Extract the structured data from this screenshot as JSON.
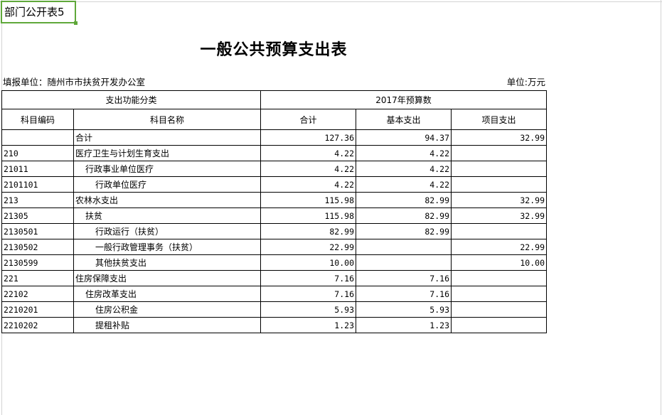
{
  "sheet": {
    "cell_a1": "部门公开表5",
    "selection_color": "#5fa83a"
  },
  "document": {
    "title": "一般公共预算支出表",
    "unit_org": "填报单位：随州市市扶贫开发办公室",
    "unit": "单位:万元"
  },
  "table": {
    "header_group_left": "支出功能分类",
    "header_group_right": "2017年预算数",
    "columns": [
      "科目编码",
      "科目名称",
      "合计",
      "基本支出",
      "项目支出"
    ],
    "rows": [
      {
        "code": "",
        "name": "合计",
        "level": 1,
        "total": "127.36",
        "basic": "94.37",
        "project": "32.99"
      },
      {
        "code": "210",
        "name": "医疗卫生与计划生育支出",
        "level": 1,
        "total": "4.22",
        "basic": "4.22",
        "project": ""
      },
      {
        "code": "21011",
        "name": "行政事业单位医疗",
        "level": 2,
        "total": "4.22",
        "basic": "4.22",
        "project": ""
      },
      {
        "code": "2101101",
        "name": "行政单位医疗",
        "level": 3,
        "total": "4.22",
        "basic": "4.22",
        "project": ""
      },
      {
        "code": "213",
        "name": "农林水支出",
        "level": 1,
        "total": "115.98",
        "basic": "82.99",
        "project": "32.99"
      },
      {
        "code": "21305",
        "name": "扶贫",
        "level": 2,
        "total": "115.98",
        "basic": "82.99",
        "project": "32.99"
      },
      {
        "code": "2130501",
        "name": "行政运行（扶贫）",
        "level": 3,
        "total": "82.99",
        "basic": "82.99",
        "project": ""
      },
      {
        "code": "2130502",
        "name": "一般行政管理事务（扶贫）",
        "level": 3,
        "total": "22.99",
        "basic": "",
        "project": "22.99"
      },
      {
        "code": "2130599",
        "name": "其他扶贫支出",
        "level": 3,
        "total": "10.00",
        "basic": "",
        "project": "10.00"
      },
      {
        "code": "221",
        "name": "住房保障支出",
        "level": 1,
        "total": "7.16",
        "basic": "7.16",
        "project": ""
      },
      {
        "code": "22102",
        "name": "住房改革支出",
        "level": 2,
        "total": "7.16",
        "basic": "7.16",
        "project": ""
      },
      {
        "code": "2210201",
        "name": "住房公积金",
        "level": 3,
        "total": "5.93",
        "basic": "5.93",
        "project": ""
      },
      {
        "code": "2210202",
        "name": "提租补贴",
        "level": 3,
        "total": "1.23",
        "basic": "1.23",
        "project": ""
      }
    ]
  }
}
